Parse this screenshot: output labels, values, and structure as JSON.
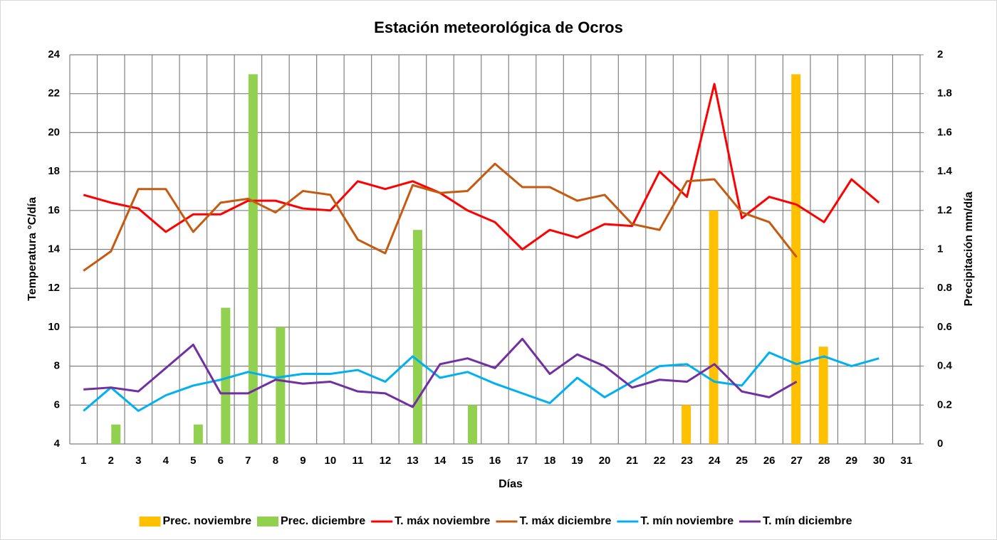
{
  "chart_data": {
    "type": "combo",
    "title": "Estación meteorológica de Ocros",
    "x_label": "Días",
    "y_label": "Temperatura °C/día",
    "y2_label": "Precipitación mm/día",
    "categories": [
      "1",
      "2",
      "3",
      "4",
      "5",
      "6",
      "7",
      "8",
      "9",
      "10",
      "11",
      "12",
      "13",
      "14",
      "15",
      "16",
      "17",
      "18",
      "19",
      "20",
      "21",
      "22",
      "23",
      "24",
      "25",
      "26",
      "27",
      "28",
      "29",
      "30",
      "31"
    ],
    "ylim": [
      4,
      24
    ],
    "yticks": [
      4,
      6,
      8,
      10,
      12,
      14,
      16,
      18,
      20,
      22,
      24
    ],
    "y2lim": [
      0,
      2
    ],
    "y2ticks": [
      0,
      0.2,
      0.4,
      0.6,
      0.8,
      1,
      1.2,
      1.4,
      1.6,
      1.8,
      2
    ],
    "grid": true,
    "legend": "bottom",
    "series": [
      {
        "name": "Prec. noviembre",
        "type": "bar",
        "axis": "y2",
        "color": "#ffc000",
        "values": [
          null,
          null,
          null,
          null,
          null,
          null,
          null,
          null,
          null,
          null,
          null,
          null,
          null,
          null,
          null,
          null,
          null,
          null,
          null,
          null,
          null,
          null,
          0.2,
          1.2,
          null,
          null,
          1.9,
          0.5,
          null,
          null,
          null
        ]
      },
      {
        "name": "Prec. diciembre",
        "type": "bar",
        "axis": "y2",
        "color": "#92d050",
        "values": [
          null,
          0.1,
          null,
          null,
          0.1,
          0.7,
          1.9,
          0.6,
          null,
          null,
          null,
          null,
          1.1,
          null,
          0.2,
          null,
          null,
          null,
          null,
          null,
          null,
          null,
          null,
          null,
          null,
          null,
          null,
          null,
          null,
          null,
          null
        ]
      },
      {
        "name": "T. máx noviembre",
        "type": "line",
        "color": "#ff0000",
        "values": [
          16.8,
          16.4,
          16.1,
          14.9,
          15.8,
          15.8,
          16.5,
          16.5,
          16.1,
          16.0,
          17.5,
          17.1,
          17.5,
          16.9,
          16.0,
          15.4,
          14.0,
          15.0,
          14.6,
          15.3,
          15.2,
          18.0,
          16.7,
          22.5,
          15.6,
          16.7,
          16.3,
          15.4,
          17.6,
          16.4,
          null
        ]
      },
      {
        "name": "T. máx diciembre",
        "type": "line",
        "color": "#c55a11",
        "values": [
          12.9,
          13.9,
          17.1,
          17.1,
          14.9,
          16.4,
          16.6,
          15.9,
          17.0,
          16.8,
          14.5,
          13.8,
          17.3,
          16.9,
          17.0,
          18.4,
          17.2,
          17.2,
          16.5,
          16.8,
          15.3,
          15.0,
          17.5,
          17.6,
          15.9,
          15.4,
          13.6,
          null,
          null,
          null,
          null
        ]
      },
      {
        "name": "T. mín noviembre",
        "type": "line",
        "color": "#00b0f0",
        "values": [
          5.7,
          6.9,
          5.7,
          6.5,
          7.0,
          7.3,
          7.7,
          7.4,
          7.6,
          7.6,
          7.8,
          7.2,
          8.5,
          7.4,
          7.7,
          7.1,
          6.6,
          6.1,
          7.4,
          6.4,
          7.2,
          8.0,
          8.1,
          7.2,
          7.0,
          8.7,
          8.1,
          8.5,
          8.0,
          8.4,
          null
        ]
      },
      {
        "name": "T. mín diciembre",
        "type": "line",
        "color": "#7030a0",
        "values": [
          6.8,
          6.9,
          6.7,
          7.9,
          9.1,
          6.6,
          6.6,
          7.3,
          7.1,
          7.2,
          6.7,
          6.6,
          5.9,
          8.1,
          8.4,
          7.9,
          9.4,
          7.6,
          8.6,
          8.0,
          6.9,
          7.3,
          7.2,
          8.1,
          6.7,
          6.4,
          7.2,
          null,
          null,
          null,
          null
        ]
      }
    ]
  }
}
